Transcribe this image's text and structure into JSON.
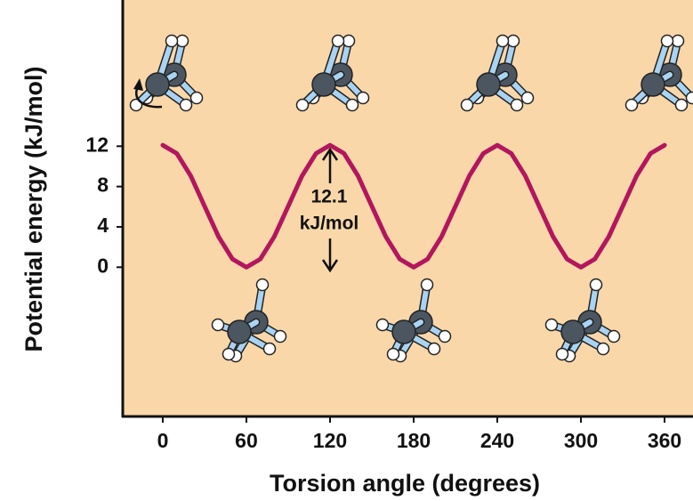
{
  "chart_data": {
    "type": "line",
    "xlabel": "Torsion angle (degrees)",
    "ylabel": "Potential energy (kJ/mol)",
    "annotations": [
      "12.1",
      "kJ/mol"
    ],
    "x": [
      0,
      10,
      20,
      30,
      40,
      50,
      60,
      70,
      80,
      90,
      100,
      110,
      120,
      130,
      140,
      150,
      160,
      170,
      180,
      190,
      200,
      210,
      220,
      230,
      240,
      250,
      260,
      270,
      280,
      290,
      300,
      310,
      320,
      330,
      340,
      350,
      360
    ],
    "series": [
      {
        "color": "#b3165e",
        "values": [
          12.1,
          11.29,
          9.08,
          6.05,
          3.03,
          0.81,
          0,
          0.81,
          3.03,
          6.05,
          9.08,
          11.29,
          12.1,
          11.29,
          9.08,
          6.05,
          3.03,
          0.81,
          0,
          0.81,
          3.03,
          6.05,
          9.08,
          11.29,
          12.1,
          11.29,
          9.08,
          6.05,
          3.03,
          0.81,
          0,
          0.81,
          3.03,
          6.05,
          9.08,
          11.29,
          12.1
        ]
      }
    ],
    "xlim": [
      -28.7,
      380.4
    ],
    "xticks": [
      0,
      60,
      120,
      180,
      240,
      300,
      360
    ],
    "ylim": [
      -14.8,
      26.5
    ],
    "yticks": [
      0,
      4,
      8,
      12
    ],
    "background": "#f9d7a9"
  }
}
